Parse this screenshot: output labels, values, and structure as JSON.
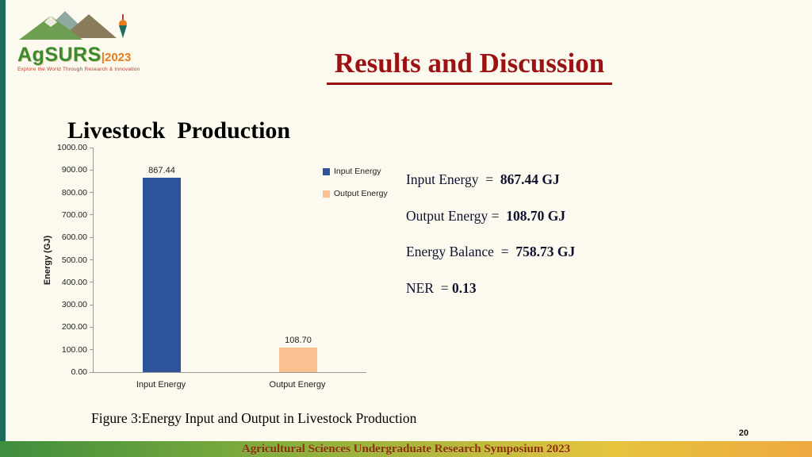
{
  "logo": {
    "name": "AgSURS",
    "year": "|2023",
    "tagline": "Explore the World Through Research & Innovation"
  },
  "header": {
    "title": "Results and Discussion"
  },
  "section": {
    "heading": "Livestock  Production"
  },
  "chart_data": {
    "type": "bar",
    "title": "Livestock  Production",
    "categories": [
      "Input Energy",
      "Output Energy"
    ],
    "values": [
      867.44,
      108.7
    ],
    "value_labels": [
      "867.44",
      "108.70"
    ],
    "bar_colors": [
      "#2E549B",
      "#FAC08F"
    ],
    "xlabel": "",
    "ylabel": "Energy (GJ)",
    "ylim": [
      0,
      1000
    ],
    "ytick_step": 100,
    "ytick_format_decimals": 2,
    "grid": false,
    "legend": [
      {
        "label": "Input Energy",
        "color": "#2E549B"
      },
      {
        "label": "Output Energy",
        "color": "#FAC08F"
      }
    ],
    "legend_position": "right-inside"
  },
  "stats": {
    "lines": [
      {
        "label": "Input Energy  =  ",
        "value": "867.44 GJ"
      },
      {
        "label": "Output Energy =  ",
        "value": "108.70 GJ"
      },
      {
        "label": "Energy Balance  =  ",
        "value": "758.73 GJ"
      },
      {
        "label": "NER  = ",
        "value": "0.13"
      }
    ]
  },
  "caption": "Figure 3:Energy Input and Output in Livestock Production",
  "footer": {
    "text": "Agricultural Sciences Undergraduate Research Symposium 2023",
    "page_number": "20"
  },
  "colors": {
    "title_red": "#9C1212",
    "accent_bar": "#1C6B5E",
    "bar_blue": "#2E549B",
    "bar_peach": "#FAC08F",
    "footer_text": "#8C2E0B"
  }
}
